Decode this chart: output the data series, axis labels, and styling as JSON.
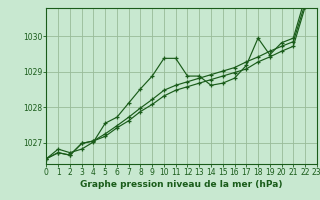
{
  "background_color": "#c8e8d0",
  "grid_color": "#99bb99",
  "line_color": "#1a5c1a",
  "title": "Graphe pression niveau de la mer (hPa)",
  "xlim": [
    0,
    23
  ],
  "ylim": [
    1026.4,
    1030.8
  ],
  "yticks": [
    1027,
    1028,
    1029,
    1030
  ],
  "xticks": [
    0,
    1,
    2,
    3,
    4,
    5,
    6,
    7,
    8,
    9,
    10,
    11,
    12,
    13,
    14,
    15,
    16,
    17,
    18,
    19,
    20,
    21,
    22,
    23
  ],
  "series1": [
    [
      0,
      1026.55
    ],
    [
      1,
      1026.82
    ],
    [
      2,
      1026.72
    ],
    [
      3,
      1026.82
    ],
    [
      4,
      1027.02
    ],
    [
      5,
      1027.55
    ],
    [
      6,
      1027.72
    ],
    [
      7,
      1028.12
    ],
    [
      8,
      1028.52
    ],
    [
      9,
      1028.88
    ],
    [
      10,
      1029.38
    ],
    [
      11,
      1029.38
    ],
    [
      12,
      1028.88
    ],
    [
      13,
      1028.88
    ],
    [
      14,
      1028.62
    ],
    [
      15,
      1028.68
    ],
    [
      16,
      1028.82
    ],
    [
      17,
      1029.18
    ],
    [
      18,
      1029.95
    ],
    [
      19,
      1029.48
    ],
    [
      20,
      1029.82
    ],
    [
      21,
      1029.95
    ],
    [
      22,
      1031.08
    ],
    [
      23,
      1031.22
    ]
  ],
  "series2": [
    [
      0,
      1026.55
    ],
    [
      1,
      1026.72
    ],
    [
      2,
      1026.65
    ],
    [
      3,
      1026.98
    ],
    [
      4,
      1027.05
    ],
    [
      5,
      1027.25
    ],
    [
      6,
      1027.48
    ],
    [
      7,
      1027.72
    ],
    [
      8,
      1027.98
    ],
    [
      9,
      1028.22
    ],
    [
      10,
      1028.48
    ],
    [
      11,
      1028.62
    ],
    [
      12,
      1028.72
    ],
    [
      13,
      1028.82
    ],
    [
      14,
      1028.92
    ],
    [
      15,
      1029.02
    ],
    [
      16,
      1029.12
    ],
    [
      17,
      1029.28
    ],
    [
      18,
      1029.42
    ],
    [
      19,
      1029.58
    ],
    [
      20,
      1029.72
    ],
    [
      21,
      1029.85
    ],
    [
      22,
      1030.92
    ],
    [
      23,
      1031.08
    ]
  ],
  "series3": [
    [
      0,
      1026.55
    ],
    [
      1,
      1026.72
    ],
    [
      2,
      1026.65
    ],
    [
      3,
      1026.98
    ],
    [
      4,
      1027.05
    ],
    [
      5,
      1027.18
    ],
    [
      6,
      1027.42
    ],
    [
      7,
      1027.62
    ],
    [
      8,
      1027.88
    ],
    [
      9,
      1028.08
    ],
    [
      10,
      1028.32
    ],
    [
      11,
      1028.48
    ],
    [
      12,
      1028.58
    ],
    [
      13,
      1028.68
    ],
    [
      14,
      1028.78
    ],
    [
      15,
      1028.88
    ],
    [
      16,
      1028.98
    ],
    [
      17,
      1029.08
    ],
    [
      18,
      1029.28
    ],
    [
      19,
      1029.42
    ],
    [
      20,
      1029.58
    ],
    [
      21,
      1029.72
    ],
    [
      22,
      1030.82
    ],
    [
      23,
      1030.98
    ]
  ],
  "title_fontsize": 6.5,
  "tick_fontsize": 5.5
}
